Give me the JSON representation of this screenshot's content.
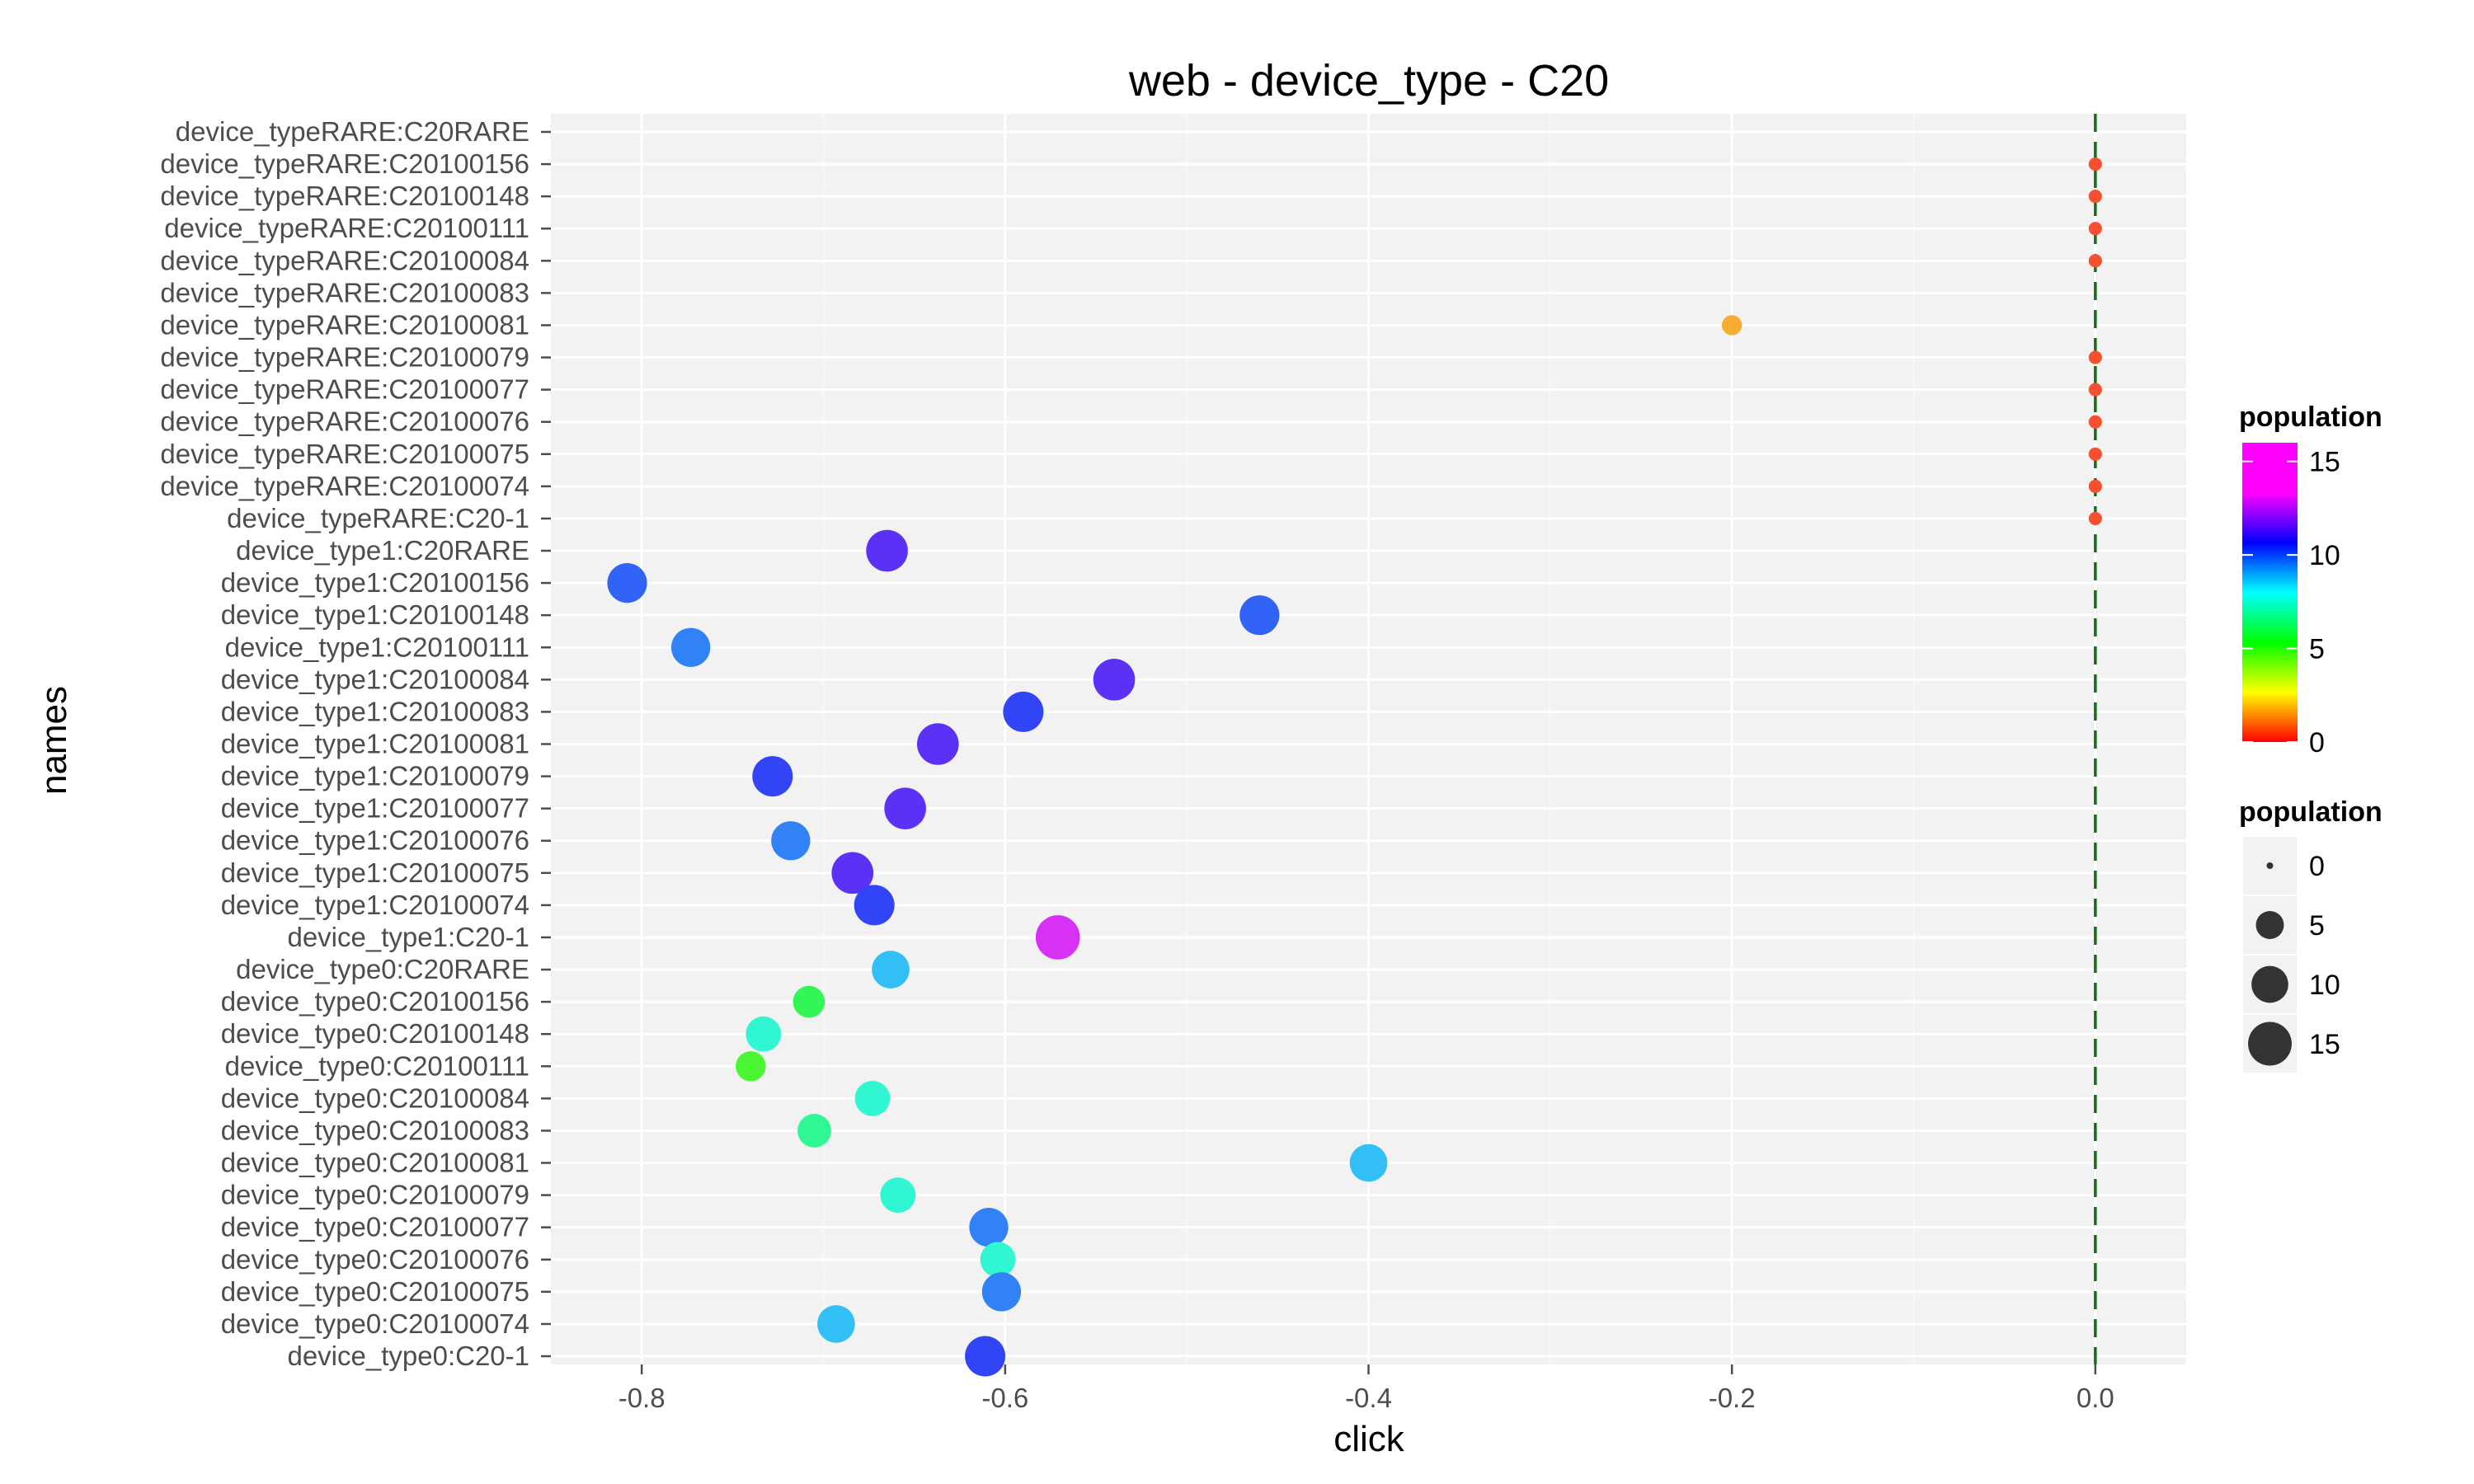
{
  "chart_data": {
    "type": "scatter",
    "title": "web - device_type - C20",
    "xlabel": "click",
    "ylabel": "names",
    "xlim": [
      -0.85,
      0.05
    ],
    "x_ticks": [
      {
        "value": -0.8,
        "label": "-0.8"
      },
      {
        "value": -0.6,
        "label": "-0.6"
      },
      {
        "value": -0.4,
        "label": "-0.4"
      },
      {
        "value": -0.2,
        "label": "-0.2"
      },
      {
        "value": 0.0,
        "label": "0.0"
      }
    ],
    "reference_line": {
      "x": 0.0,
      "style": "dashed",
      "color": "#1a6b1a"
    },
    "grid": true,
    "legend_position": "right",
    "color_legend": {
      "title": "population",
      "min": 0,
      "max": 16,
      "ticks": [
        "0",
        "5",
        "10",
        "15"
      ]
    },
    "size_legend": {
      "title": "population",
      "entries": [
        "0",
        "5",
        "10",
        "15"
      ]
    },
    "categories": [
      "device_typeRARE:C20RARE",
      "device_typeRARE:C20100156",
      "device_typeRARE:C20100148",
      "device_typeRARE:C20100111",
      "device_typeRARE:C20100084",
      "device_typeRARE:C20100083",
      "device_typeRARE:C20100081",
      "device_typeRARE:C20100079",
      "device_typeRARE:C20100077",
      "device_typeRARE:C20100076",
      "device_typeRARE:C20100075",
      "device_typeRARE:C20100074",
      "device_typeRARE:C20-1",
      "device_type1:C20RARE",
      "device_type1:C20100156",
      "device_type1:C20100148",
      "device_type1:C20100111",
      "device_type1:C20100084",
      "device_type1:C20100083",
      "device_type1:C20100081",
      "device_type1:C20100079",
      "device_type1:C20100077",
      "device_type1:C20100076",
      "device_type1:C20100075",
      "device_type1:C20100074",
      "device_type1:C20-1",
      "device_type0:C20RARE",
      "device_type0:C20100156",
      "device_type0:C20100148",
      "device_type0:C20100111",
      "device_type0:C20100084",
      "device_type0:C20100083",
      "device_type0:C20100081",
      "device_type0:C20100079",
      "device_type0:C20100077",
      "device_type0:C20100076",
      "device_type0:C20100075",
      "device_type0:C20100074",
      "device_type0:C20-1"
    ],
    "points": [
      {
        "name": "device_typeRARE:C20RARE",
        "x": null,
        "population": null
      },
      {
        "name": "device_typeRARE:C20100156",
        "x": 0.0,
        "population": 0.5
      },
      {
        "name": "device_typeRARE:C20100148",
        "x": 0.0,
        "population": 0.5
      },
      {
        "name": "device_typeRARE:C20100111",
        "x": 0.0,
        "population": 0.5
      },
      {
        "name": "device_typeRARE:C20100084",
        "x": 0.0,
        "population": 0.5
      },
      {
        "name": "device_typeRARE:C20100083",
        "x": null,
        "population": null
      },
      {
        "name": "device_typeRARE:C20100081",
        "x": -0.2,
        "population": 2
      },
      {
        "name": "device_typeRARE:C20100079",
        "x": 0.0,
        "population": 0.5
      },
      {
        "name": "device_typeRARE:C20100077",
        "x": 0.0,
        "population": 0.5
      },
      {
        "name": "device_typeRARE:C20100076",
        "x": 0.0,
        "population": 0.5
      },
      {
        "name": "device_typeRARE:C20100075",
        "x": 0.0,
        "population": 0.5
      },
      {
        "name": "device_typeRARE:C20100074",
        "x": 0.0,
        "population": 0.5
      },
      {
        "name": "device_typeRARE:C20-1",
        "x": 0.0,
        "population": 0.5
      },
      {
        "name": "device_type1:C20RARE",
        "x": -0.665,
        "population": 13.5
      },
      {
        "name": "device_type1:C20100156",
        "x": -0.808,
        "population": 12
      },
      {
        "name": "device_type1:C20100148",
        "x": -0.46,
        "population": 12
      },
      {
        "name": "device_type1:C20100111",
        "x": -0.773,
        "population": 11.5
      },
      {
        "name": "device_type1:C20100084",
        "x": -0.54,
        "population": 13.5
      },
      {
        "name": "device_type1:C20100083",
        "x": -0.59,
        "population": 12.5
      },
      {
        "name": "device_type1:C20100081",
        "x": -0.637,
        "population": 13.5
      },
      {
        "name": "device_type1:C20100079",
        "x": -0.728,
        "population": 12.5
      },
      {
        "name": "device_type1:C20100077",
        "x": -0.655,
        "population": 13.5
      },
      {
        "name": "device_type1:C20100076",
        "x": -0.718,
        "population": 11.5
      },
      {
        "name": "device_type1:C20100075",
        "x": -0.684,
        "population": 13.5
      },
      {
        "name": "device_type1:C20100074",
        "x": -0.672,
        "population": 12.5
      },
      {
        "name": "device_type1:C20-1",
        "x": -0.571,
        "population": 15.5
      },
      {
        "name": "device_type0:C20RARE",
        "x": -0.663,
        "population": 10.5
      },
      {
        "name": "device_type0:C20100156",
        "x": -0.708,
        "population": 7
      },
      {
        "name": "device_type0:C20100148",
        "x": -0.733,
        "population": 9
      },
      {
        "name": "device_type0:C20100111",
        "x": -0.74,
        "population": 6
      },
      {
        "name": "device_type0:C20100084",
        "x": -0.673,
        "population": 9
      },
      {
        "name": "device_type0:C20100083",
        "x": -0.705,
        "population": 8
      },
      {
        "name": "device_type0:C20100081",
        "x": -0.4,
        "population": 10.5
      },
      {
        "name": "device_type0:C20100079",
        "x": -0.659,
        "population": 9
      },
      {
        "name": "device_type0:C20100077",
        "x": -0.609,
        "population": 11.5
      },
      {
        "name": "device_type0:C20100076",
        "x": -0.604,
        "population": 9
      },
      {
        "name": "device_type0:C20100075",
        "x": -0.602,
        "population": 11.5
      },
      {
        "name": "device_type0:C20100074",
        "x": -0.693,
        "population": 10.5
      },
      {
        "name": "device_type0:C20-1",
        "x": -0.611,
        "population": 12.5
      }
    ]
  }
}
